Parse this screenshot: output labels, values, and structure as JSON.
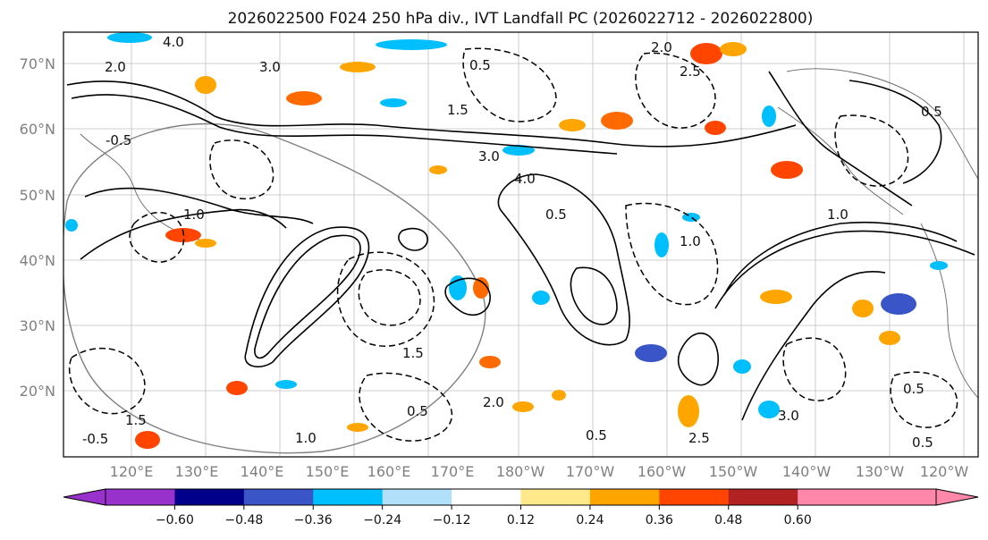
{
  "title": "2026022500 F024 250 hPa div., IVT Landfall PC (2026022712 - 2026022800)",
  "map": {
    "lat_ticks": [
      "70°N",
      "60°N",
      "50°N",
      "40°N",
      "30°N",
      "20°N"
    ],
    "lon_ticks": [
      "120°E",
      "130°E",
      "140°E",
      "150°E",
      "160°E",
      "170°E",
      "180°W",
      "170°W",
      "160°W",
      "150°W",
      "140°W",
      "130°W",
      "120°W"
    ],
    "contour_labels": [
      "4.0",
      "2.0",
      "3.0",
      "0.5",
      "-0.5",
      "1.0",
      "1.5",
      "3.0",
      "4.0",
      "0.5",
      "1.0",
      "2.0",
      "2.5",
      "1.5",
      "1.0",
      "0.5",
      "0.5",
      "-0.5",
      "2.0",
      "1.5",
      "0.5",
      "3.0",
      "2.5",
      "1.0",
      "0.5",
      "0.5"
    ]
  },
  "colorbar": {
    "colors": [
      "#9932cc",
      "#00008b",
      "#3a55c8",
      "#00bfff",
      "#b0e0fa",
      "#ffffff",
      "#ffe98a",
      "#ffa500",
      "#ff4500",
      "#b22222",
      "#ff88aa",
      "#ff88aa"
    ],
    "under_color": "#9932cc",
    "over_color": "#ff88aa",
    "tick_labels": [
      "−0.60",
      "−0.48",
      "−0.36",
      "−0.24",
      "−0.12",
      "0.12",
      "0.24",
      "0.36",
      "0.48",
      "0.60"
    ]
  },
  "colors": {
    "contour": "#000000",
    "grid": "#999999",
    "coastline": "#777777"
  }
}
